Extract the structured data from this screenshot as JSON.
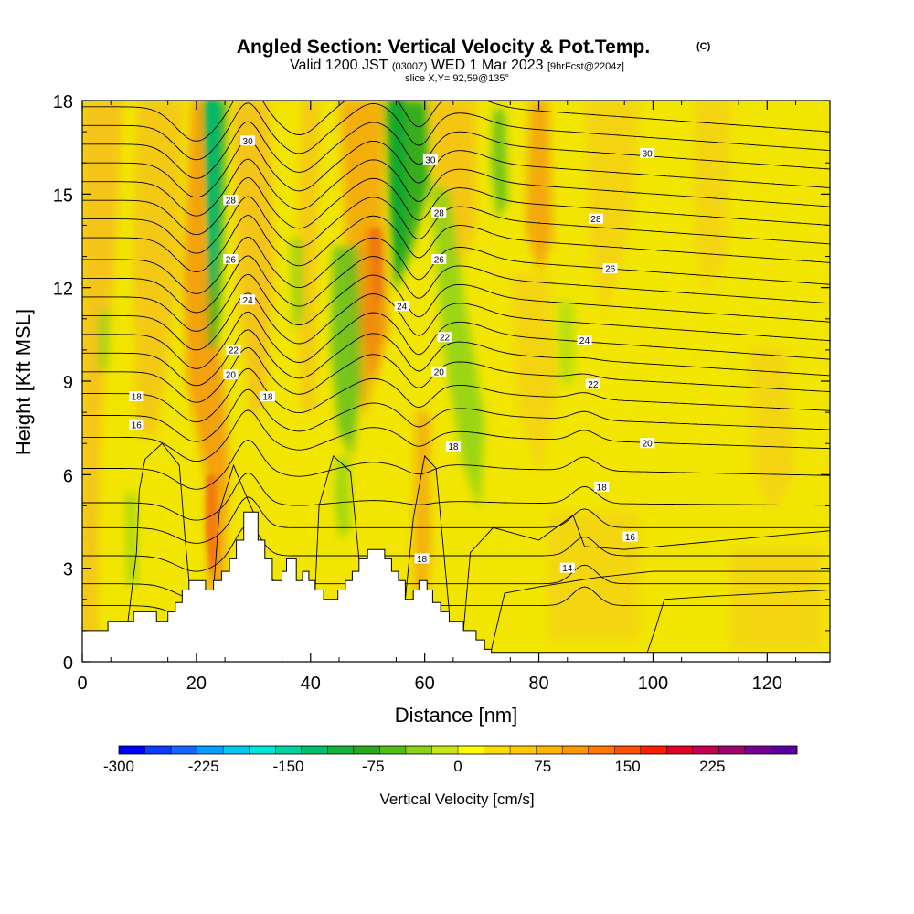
{
  "chart_data": {
    "type": "heatmap",
    "title": "Angled Section: Vertical Velocity & Pot.Temp.",
    "title_mark": "(C)",
    "subtitle": {
      "a": "Valid 1200 JST",
      "b": "(0300Z)",
      "c": "WED 1 Mar 2023",
      "d": "[9hrFcst@2204z]"
    },
    "slice_label": "slice X,Y= 92,59@135°",
    "xlabel": "Distance [nm]",
    "ylabel": "Height [Kft MSL]",
    "xlim": [
      0,
      131
    ],
    "ylim": [
      0,
      18
    ],
    "x_ticks": [
      "0",
      "20",
      "40",
      "60",
      "80",
      "100",
      "120"
    ],
    "y_ticks": [
      "0",
      "3",
      "6",
      "9",
      "12",
      "15",
      "18"
    ],
    "colorbar": {
      "label": "Vertical Velocity [cm/s]",
      "range": [
        -300,
        300
      ],
      "tick_labels": [
        "-300",
        "-225",
        "-150",
        "-75",
        "0",
        "75",
        "150",
        "225"
      ],
      "colors": [
        "#0000ff",
        "#0a3cff",
        "#1466ff",
        "#00a0ff",
        "#00c8f0",
        "#00e6dc",
        "#00d2a0",
        "#00c070",
        "#14b43c",
        "#28a81e",
        "#50be14",
        "#8cd214",
        "#c8e614",
        "#ffff00",
        "#ffdc00",
        "#ffc800",
        "#ffb400",
        "#ff9600",
        "#ff7800",
        "#ff5000",
        "#ff1e00",
        "#e60028",
        "#c80050",
        "#a00070",
        "#780090",
        "#5a00a0"
      ]
    },
    "contour_labels": [
      {
        "text": "30",
        "x": 29.0,
        "y": 16.7
      },
      {
        "text": "30",
        "x": 61.0,
        "y": 16.1
      },
      {
        "text": "30",
        "x": 99.0,
        "y": 16.3
      },
      {
        "text": "28",
        "x": 26.0,
        "y": 14.8
      },
      {
        "text": "28",
        "x": 62.5,
        "y": 14.4
      },
      {
        "text": "28",
        "x": 90.0,
        "y": 14.2
      },
      {
        "text": "26",
        "x": 26.0,
        "y": 12.9
      },
      {
        "text": "26",
        "x": 62.5,
        "y": 12.9
      },
      {
        "text": "26",
        "x": 92.5,
        "y": 12.6
      },
      {
        "text": "24",
        "x": 29.0,
        "y": 11.6
      },
      {
        "text": "24",
        "x": 56.0,
        "y": 11.4
      },
      {
        "text": "24",
        "x": 88.0,
        "y": 10.3
      },
      {
        "text": "22",
        "x": 26.5,
        "y": 10.0
      },
      {
        "text": "22",
        "x": 63.5,
        "y": 10.4
      },
      {
        "text": "22",
        "x": 89.5,
        "y": 8.9
      },
      {
        "text": "20",
        "x": 26.0,
        "y": 9.2
      },
      {
        "text": "20",
        "x": 62.5,
        "y": 9.3
      },
      {
        "text": "20",
        "x": 99.0,
        "y": 7.0
      },
      {
        "text": "18",
        "x": 9.5,
        "y": 8.5
      },
      {
        "text": "18",
        "x": 32.5,
        "y": 8.5
      },
      {
        "text": "18",
        "x": 65.0,
        "y": 6.9
      },
      {
        "text": "18",
        "x": 91.0,
        "y": 5.6
      },
      {
        "text": "18",
        "x": 59.5,
        "y": 3.3
      },
      {
        "text": "16",
        "x": 9.5,
        "y": 7.6
      },
      {
        "text": "16",
        "x": 96.0,
        "y": 4.0
      },
      {
        "text": "14",
        "x": 85.0,
        "y": 3.0
      }
    ]
  }
}
